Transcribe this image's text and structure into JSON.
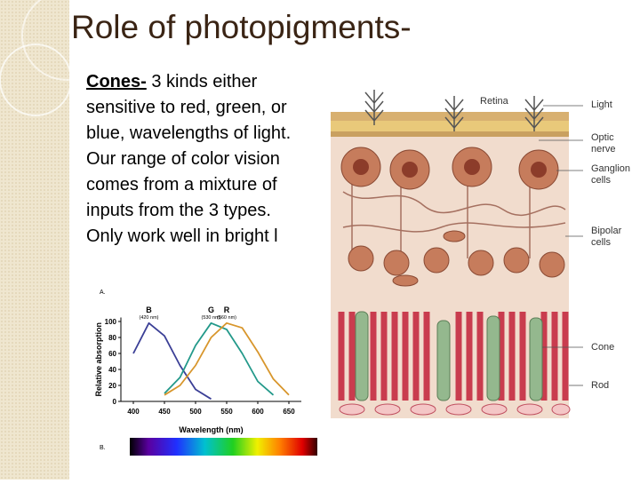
{
  "title": "Role of photopigments-",
  "body": {
    "lead": "Cones-",
    "text": " 3 kinds either sensitive to red, green, or blue, wavelengths of light. Our range of color vision comes from a mixture of inputs from the 3 types.  Only work well in bright l"
  },
  "absorption_chart": {
    "type": "line",
    "panel_labels": [
      "A.",
      "B."
    ],
    "xlabel": "Wavelength (nm)",
    "ylabel": "Relative absorption",
    "x": [
      400,
      425,
      450,
      475,
      500,
      525,
      550,
      575,
      600,
      625,
      650
    ],
    "series": [
      {
        "name": "B",
        "peak_label": "(420 nm)",
        "color": "#3b3f96",
        "values": [
          60,
          98,
          82,
          45,
          15,
          3,
          null,
          null,
          null,
          null,
          null
        ]
      },
      {
        "name": "G",
        "peak_label": "(530 nm)",
        "color": "#23998a",
        "values": [
          null,
          null,
          10,
          30,
          70,
          98,
          90,
          60,
          25,
          8,
          null
        ]
      },
      {
        "name": "R",
        "peak_label": "(560 nm)",
        "color": "#d8962c",
        "values": [
          null,
          null,
          8,
          20,
          45,
          80,
          98,
          92,
          62,
          28,
          8
        ]
      }
    ],
    "xlim": [
      380,
      670
    ],
    "ylim": [
      0,
      105
    ],
    "xticks": [
      400,
      450,
      500,
      550,
      600,
      650
    ],
    "yticks": [
      0,
      20,
      40,
      60,
      80,
      100
    ]
  },
  "retina": {
    "title": "Retina",
    "labels": [
      "Light",
      "Optic nerve",
      "Ganglion cells",
      "Bipolar cells",
      "Cone",
      "Rod"
    ]
  }
}
